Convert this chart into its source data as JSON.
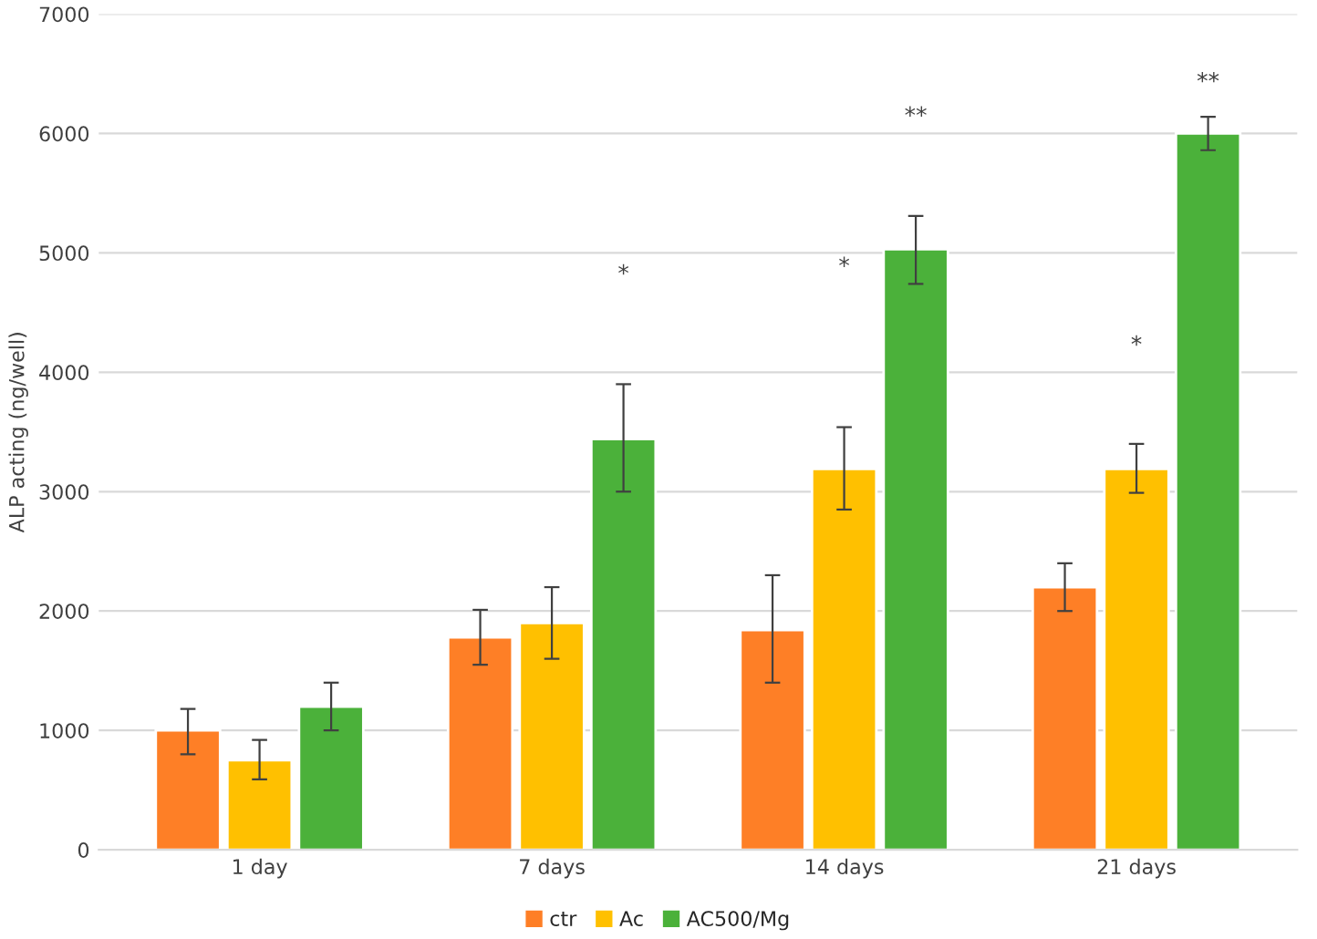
{
  "chart_data": {
    "type": "bar",
    "ylabel": "ALP acting (ng/well)",
    "categories": [
      "1 day",
      "7 days",
      "14 days",
      "21 days"
    ],
    "series": [
      {
        "name": "ctr",
        "color": "#fe7f26",
        "values": [
          1000,
          1780,
          1840,
          2200
        ],
        "errors": [
          [
            800,
            1180
          ],
          [
            1550,
            2010
          ],
          [
            1400,
            2300
          ],
          [
            2000,
            2400
          ]
        ]
      },
      {
        "name": "Ac",
        "color": "#ffc000",
        "values": [
          750,
          1900,
          3190,
          3190
        ],
        "errors": [
          [
            590,
            920
          ],
          [
            1600,
            2200
          ],
          [
            2850,
            3540
          ],
          [
            2990,
            3400
          ]
        ]
      },
      {
        "name": "AC500/Mg",
        "color": "#4bb13a",
        "values": [
          1200,
          3440,
          5030,
          6000
        ],
        "errors": [
          [
            1000,
            1400
          ],
          [
            3000,
            3900
          ],
          [
            4740,
            5310
          ],
          [
            5860,
            6140
          ]
        ]
      }
    ],
    "annotations": [
      "*",
      "*",
      "**",
      "*",
      "**"
    ],
    "ylim": [
      0,
      7000
    ],
    "yticks": [
      0,
      1000,
      2000,
      3000,
      4000,
      5000,
      6000,
      7000
    ],
    "grid": "y",
    "legend": "bottom"
  }
}
